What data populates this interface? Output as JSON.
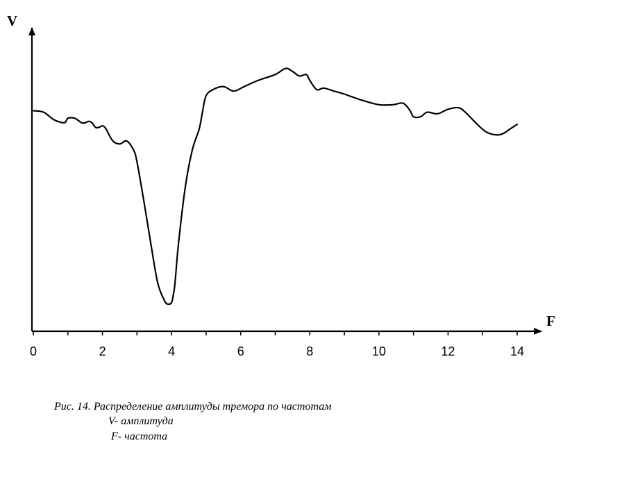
{
  "chart_data": {
    "type": "line",
    "ylabel": "V",
    "xlabel": "F",
    "xlim": [
      0,
      14
    ],
    "xticks": [
      0,
      2,
      4,
      6,
      8,
      10,
      12,
      14
    ],
    "ylim": [
      0,
      10
    ],
    "grid": false,
    "series": [
      {
        "x": [
          0,
          0.3,
          0.6,
          0.9,
          1.0,
          1.2,
          1.4,
          1.5,
          1.6,
          1.7,
          1.8,
          1.9,
          2.0,
          2.1,
          2.3,
          2.5,
          2.7,
          2.9,
          3.0,
          3.2,
          3.4,
          3.6,
          3.8,
          3.9,
          4.0,
          4.05,
          4.1,
          4.2,
          4.4,
          4.6,
          4.8,
          4.9,
          5.0,
          5.2,
          5.5,
          5.8,
          6.1,
          6.5,
          7.0,
          7.3,
          7.5,
          7.7,
          7.9,
          8.0,
          8.2,
          8.4,
          8.7,
          9.0,
          9.5,
          10.0,
          10.4,
          10.7,
          10.9,
          11.0,
          11.2,
          11.4,
          11.7,
          12.0,
          12.3,
          12.5,
          12.8,
          13.1,
          13.4,
          13.6,
          13.8,
          14.0
        ],
        "values": [
          7.3,
          7.25,
          7.0,
          6.9,
          7.05,
          7.05,
          6.9,
          6.9,
          6.95,
          6.9,
          6.75,
          6.75,
          6.8,
          6.7,
          6.3,
          6.2,
          6.3,
          6.0,
          5.6,
          4.3,
          2.9,
          1.6,
          1.0,
          0.9,
          0.95,
          1.2,
          1.6,
          2.9,
          4.8,
          6.0,
          6.7,
          7.3,
          7.8,
          8.0,
          8.1,
          7.95,
          8.1,
          8.3,
          8.5,
          8.7,
          8.6,
          8.45,
          8.5,
          8.3,
          8.0,
          8.05,
          7.95,
          7.85,
          7.65,
          7.5,
          7.5,
          7.55,
          7.3,
          7.1,
          7.1,
          7.25,
          7.2,
          7.35,
          7.4,
          7.25,
          6.9,
          6.6,
          6.5,
          6.55,
          6.7,
          6.85
        ]
      }
    ]
  },
  "caption": {
    "title": "Рис. 14. Распределение амплитуды тремора по частотам",
    "v_line": "V- амплитуда",
    "f_line": "F- частота"
  }
}
